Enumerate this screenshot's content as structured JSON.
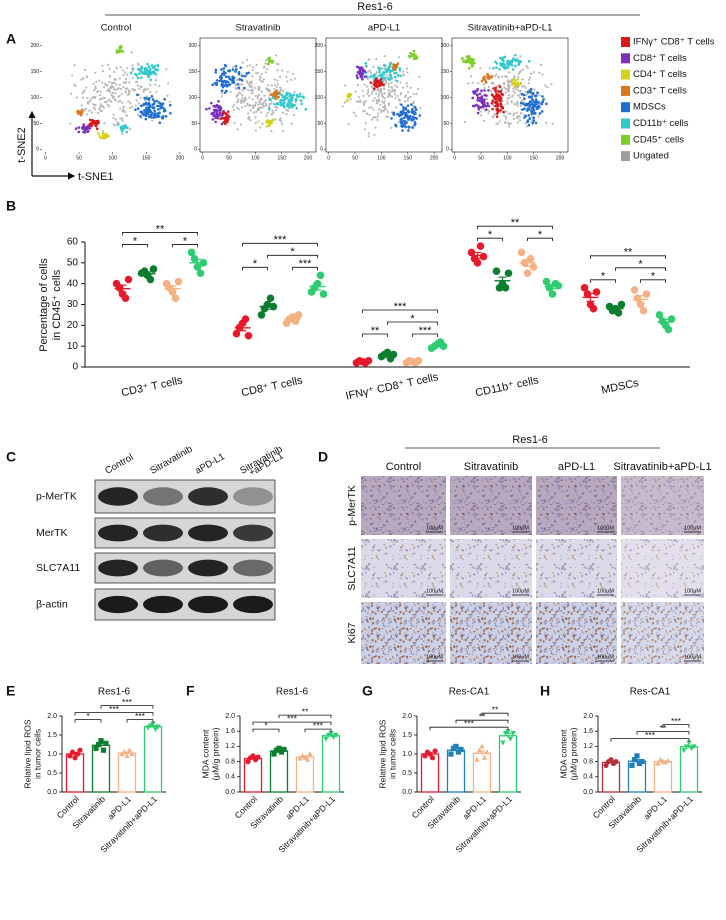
{
  "panel_labels": [
    "A",
    "B",
    "C",
    "D",
    "E",
    "F",
    "G",
    "H"
  ],
  "panel_a": {
    "title": "Res1-6",
    "plots": [
      {
        "title": "Control"
      },
      {
        "title": "Stravatinib"
      },
      {
        "title": "aPD-L1"
      },
      {
        "title": "Sitravatinib+aPD-L1"
      }
    ],
    "xlabel": "t-SNE1",
    "ylabel": "t-SNE2",
    "xlim": [
      -5,
      215
    ],
    "ylim": [
      -5,
      215
    ],
    "xticks": [
      0,
      50,
      100,
      150,
      200
    ],
    "yticks": [
      0,
      50,
      100,
      150,
      200
    ],
    "legend": [
      {
        "label": "IFNγ⁺ CD8⁺ T cells",
        "color": "#d7191c"
      },
      {
        "label": "CD8⁺ T cells",
        "color": "#7b2fbe"
      },
      {
        "label": "CD4⁺ T cells",
        "color": "#d4d11e"
      },
      {
        "label": "CD3⁺ T cells",
        "color": "#d9771b"
      },
      {
        "label": "MDSCs",
        "color": "#1f6fd1"
      },
      {
        "label": "CD11b⁺  cells",
        "color": "#33c9cc"
      },
      {
        "label": "CD45⁺  cells",
        "color": "#7ccf2a"
      },
      {
        "label": "Ungated",
        "color": "#9e9e9e"
      }
    ]
  },
  "chart_data": [
    {
      "type": "dot",
      "ylabel": [
        "Percentage of cells",
        "in CD45⁺ cells"
      ],
      "categories": [
        "CD3⁺ T cells",
        "CD8⁺ T cells",
        "IFNγ⁺ CD8⁺ T cells",
        "CD11b⁺ cells",
        "MDSCs"
      ],
      "ylim": [
        0,
        60
      ],
      "yticks": [
        0,
        10,
        20,
        30,
        40,
        50,
        60
      ],
      "series": [
        {
          "color": "#e8192c",
          "values": [
            [
              40,
              38,
              35,
              33,
              42
            ],
            [
              16,
              19,
              21,
              23,
              15
            ],
            [
              2,
              3,
              2.5,
              2,
              3
            ],
            [
              55,
              52,
              50,
              58,
              53
            ],
            [
              38,
              35,
              30,
              28,
              36
            ]
          ],
          "means": [
            37.6,
            18.8,
            2.5,
            53.6,
            33.4
          ],
          "errors": [
            1.7,
            1.4,
            0.2,
            1.4,
            1.9
          ]
        },
        {
          "color": "#0b7d2e",
          "values": [
            [
              45,
              46,
              44,
              42,
              47
            ],
            [
              25,
              28,
              30,
              33,
              29
            ],
            [
              5,
              6,
              7,
              4,
              6
            ],
            [
              46,
              38,
              40,
              38,
              45
            ],
            [
              29,
              27,
              28,
              26,
              30
            ]
          ],
          "means": [
            44.8,
            29,
            5.6,
            41.4,
            28
          ],
          "errors": [
            0.9,
            1.3,
            0.5,
            1.7,
            0.7
          ]
        },
        {
          "color": "#f4b183",
          "values": [
            [
              40,
              38,
              36,
              33,
              41
            ],
            [
              21,
              23,
              24,
              22,
              25
            ],
            [
              2,
              3,
              2.5,
              2,
              3
            ],
            [
              55,
              50,
              45,
              52,
              48
            ],
            [
              37,
              33,
              30,
              27,
              35
            ]
          ],
          "means": [
            37.6,
            23,
            2.5,
            50,
            32.4
          ],
          "errors": [
            1.4,
            0.7,
            0.2,
            1.7,
            1.8
          ]
        },
        {
          "color": "#2ecc71",
          "values": [
            [
              55,
              52,
              48,
              45,
              50
            ],
            [
              36,
              38,
              40,
              44,
              35
            ],
            [
              9,
              10,
              11,
              12,
              10
            ],
            [
              41,
              38,
              35,
              40,
              39
            ],
            [
              25,
              22,
              20,
              18,
              23
            ]
          ],
          "means": [
            50,
            38.6,
            10.4,
            38.6,
            21.6
          ],
          "errors": [
            1.7,
            1.6,
            0.5,
            1.0,
            1.2
          ]
        }
      ],
      "significance": [
        [
          {
            "label": "*",
            "pair": [
              0,
              1
            ]
          },
          {
            "label": "*",
            "pair": [
              2,
              3
            ]
          },
          {
            "label": "**",
            "pair": [
              0,
              3
            ]
          }
        ],
        [
          {
            "label": "*",
            "pair": [
              0,
              1
            ]
          },
          {
            "label": "***",
            "pair": [
              2,
              3
            ]
          },
          {
            "label": "*",
            "pair": [
              1,
              3
            ]
          },
          {
            "label": "***",
            "pair": [
              0,
              3
            ]
          }
        ],
        [
          {
            "label": "**",
            "pair": [
              0,
              1
            ]
          },
          {
            "label": "***",
            "pair": [
              2,
              3
            ]
          },
          {
            "label": "*",
            "pair": [
              1,
              3
            ]
          },
          {
            "label": "***",
            "pair": [
              0,
              3
            ]
          }
        ],
        [
          {
            "label": "*",
            "pair": [
              0,
              1
            ]
          },
          {
            "label": "*",
            "pair": [
              2,
              3
            ]
          },
          {
            "label": "**",
            "pair": [
              0,
              3
            ]
          }
        ],
        [
          {
            "label": "*",
            "pair": [
              0,
              1
            ]
          },
          {
            "label": "*",
            "pair": [
              2,
              3
            ]
          },
          {
            "label": "*",
            "pair": [
              1,
              3
            ]
          },
          {
            "label": "**",
            "pair": [
              0,
              3
            ]
          }
        ]
      ]
    },
    {
      "type": "bar",
      "title": "Res1-6",
      "ylabel": [
        "Relative lipid ROS",
        "in tumor cells"
      ],
      "categories": [
        "Control",
        "Sitravatinib",
        "aPD-L1",
        "Sitravatinib+aPD-L1"
      ],
      "colors": [
        "#e8192c",
        "#0b7d2e",
        "#f4b183",
        "#2ecc71"
      ],
      "markers": [
        "circle",
        "square",
        "triangle-up",
        "triangle-down"
      ],
      "values": [
        1.0,
        1.23,
        1.02,
        1.72
      ],
      "errors": [
        0.04,
        0.05,
        0.03,
        0.03
      ],
      "points": [
        [
          0.95,
          1.05,
          0.9,
          1.0,
          1.1
        ],
        [
          1.15,
          1.25,
          1.35,
          1.1,
          1.28
        ],
        [
          1.0,
          1.05,
          0.95,
          1.1,
          1.0
        ],
        [
          1.7,
          1.75,
          1.8,
          1.65,
          1.72
        ]
      ],
      "ylim": [
        0,
        2
      ],
      "yticks": [
        {
          "value": 0,
          "label": "0.0"
        },
        0.5,
        {
          "value": 1,
          "label": "1.0"
        },
        1.5,
        {
          "value": 2,
          "label": "2.0"
        }
      ],
      "significance": [
        {
          "label": "*",
          "pair": [
            0,
            1
          ]
        },
        {
          "label": "***",
          "pair": [
            0,
            3
          ]
        },
        {
          "label": "***",
          "pair": [
            1,
            3
          ]
        },
        {
          "label": "***",
          "pair": [
            2,
            3
          ]
        }
      ]
    },
    {
      "type": "bar",
      "title": "Res1-6",
      "ylabel": [
        "MDA content",
        "(μM/g protein)"
      ],
      "categories": [
        "Control",
        "Sitravatinib",
        "aPD-L1",
        "Sitravatinib+aPD-L1"
      ],
      "colors": [
        "#e8192c",
        "#0b7d2e",
        "#f4b183",
        "#2ecc71"
      ],
      "markers": [
        "circle",
        "square",
        "triangle-up",
        "triangle-down"
      ],
      "values": [
        0.88,
        1.08,
        0.92,
        1.48
      ],
      "errors": [
        0.03,
        0.03,
        0.03,
        0.04
      ],
      "points": [
        [
          0.8,
          0.9,
          0.95,
          0.85,
          0.92
        ],
        [
          1.0,
          1.1,
          1.15,
          1.05,
          1.12
        ],
        [
          0.88,
          0.95,
          0.9,
          0.85,
          1.0
        ],
        [
          1.4,
          1.5,
          1.55,
          1.45,
          1.5
        ]
      ],
      "ylim": [
        0,
        2
      ],
      "yticks": [
        {
          "value": 0,
          "label": "0.0"
        },
        0.4,
        0.8,
        1.2,
        1.6,
        {
          "value": 2,
          "label": "2.0"
        }
      ],
      "significance": [
        {
          "label": "*",
          "pair": [
            0,
            1
          ]
        },
        {
          "label": "***",
          "pair": [
            0,
            3
          ]
        },
        {
          "label": "**",
          "pair": [
            1,
            3
          ]
        },
        {
          "label": "***",
          "pair": [
            2,
            3
          ]
        }
      ]
    },
    {
      "type": "bar",
      "title": "Res-CA1",
      "ylabel": [
        "Relative lipid ROS",
        "in tumor cells"
      ],
      "categories": [
        "Control",
        "Sitravatinib",
        "aPD-L1",
        "Sitravatinib+aPD-L1"
      ],
      "colors": [
        "#e8192c",
        "#1f7fb8",
        "#f4b183",
        "#2ecc71"
      ],
      "markers": [
        "circle",
        "square",
        "triangle-up",
        "triangle-down"
      ],
      "values": [
        1.0,
        1.1,
        1.02,
        1.48
      ],
      "errors": [
        0.03,
        0.04,
        0.06,
        0.06
      ],
      "points": [
        [
          0.95,
          1.05,
          1.0,
          0.9,
          1.08
        ],
        [
          1.0,
          1.15,
          1.2,
          1.05,
          1.12
        ],
        [
          0.85,
          1.1,
          1.2,
          0.9,
          1.05
        ],
        [
          1.3,
          1.55,
          1.6,
          1.4,
          1.55
        ]
      ],
      "ylim": [
        0,
        2
      ],
      "yticks": [
        {
          "value": 0,
          "label": "0.0"
        },
        0.5,
        {
          "value": 1,
          "label": "1.0"
        },
        1.5,
        {
          "value": 2,
          "label": "2.0"
        }
      ],
      "significance": [
        {
          "label": "***",
          "pair": [
            0,
            3
          ]
        },
        {
          "label": "**",
          "pair": [
            1,
            3
          ]
        },
        {
          "label": "**",
          "pair": [
            2,
            3
          ]
        }
      ]
    },
    {
      "type": "bar",
      "title": "Res-CA1",
      "ylabel": [
        "MDA content",
        "(μM/g protein)"
      ],
      "categories": [
        "Control",
        "Sitravatinib",
        "aPD-L1",
        "Sitravatinib+aPD-L1"
      ],
      "colors": [
        "#b5323c",
        "#1f7fb8",
        "#f4b183",
        "#2ecc71"
      ],
      "markers": [
        "circle",
        "square",
        "triangle-up",
        "triangle-down"
      ],
      "values": [
        0.78,
        0.81,
        0.8,
        1.19
      ],
      "errors": [
        0.03,
        0.04,
        0.02,
        0.04
      ],
      "points": [
        [
          0.7,
          0.8,
          0.85,
          0.75,
          0.8
        ],
        [
          0.7,
          0.85,
          0.95,
          0.75,
          0.8
        ],
        [
          0.75,
          0.85,
          0.8,
          0.78,
          0.82
        ],
        [
          1.1,
          1.2,
          1.3,
          1.15,
          1.2
        ]
      ],
      "ylim": [
        0,
        2
      ],
      "yticks": [
        {
          "value": 0,
          "label": "0.0"
        },
        0.4,
        0.8,
        1.2,
        1.6,
        {
          "value": 2,
          "label": "2.0"
        }
      ],
      "significance": [
        {
          "label": "***",
          "pair": [
            0,
            3
          ]
        },
        {
          "label": "**",
          "pair": [
            1,
            3
          ]
        },
        {
          "label": "***",
          "pair": [
            2,
            3
          ]
        }
      ]
    }
  ],
  "panel_c": {
    "columns": [
      [
        "Control"
      ],
      [
        "Sitravatinib"
      ],
      [
        "aPD-L1"
      ],
      [
        "Sitravatinib",
        "+aPD-L1"
      ]
    ],
    "rows": [
      "p-MerTK",
      "MerTK",
      "SLC7A11",
      "β-actin"
    ]
  },
  "panel_d": {
    "title": "Res1-6",
    "columns": [
      "Control",
      "Sitravatinib",
      "aPD-L1",
      "Sitravatinib+aPD-L1"
    ],
    "rows": [
      "p-MerTK",
      "SLC7A11",
      "Ki67"
    ],
    "scale_bar": "100μM"
  }
}
